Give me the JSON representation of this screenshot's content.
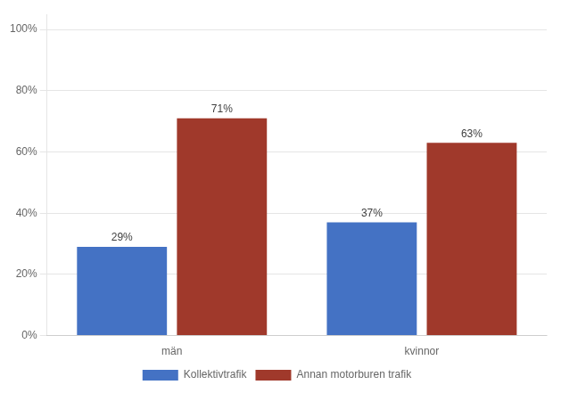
{
  "chart_data": {
    "type": "bar",
    "categories": [
      "män",
      "kvinnor"
    ],
    "series": [
      {
        "name": "Kollektivtrafik",
        "color": "#4472C4",
        "values": [
          0.29,
          0.37
        ],
        "value_labels": [
          "29%",
          "37%"
        ]
      },
      {
        "name": "Annan motorburen trafik",
        "color": "#A0392B",
        "values": [
          0.71,
          0.63
        ],
        "value_labels": [
          "71%",
          "63%"
        ]
      }
    ],
    "ylim": [
      0,
      1.05
    ],
    "yticks": [
      {
        "value": 0,
        "label": "0%"
      },
      {
        "value": 0.2,
        "label": "20%"
      },
      {
        "value": 0.4,
        "label": "40%"
      },
      {
        "value": 0.6,
        "label": "60%"
      },
      {
        "value": 0.8,
        "label": "80%"
      },
      {
        "value": 1.0,
        "label": "100%"
      }
    ],
    "grid": true,
    "legend": "bottom",
    "data_labels": true
  }
}
